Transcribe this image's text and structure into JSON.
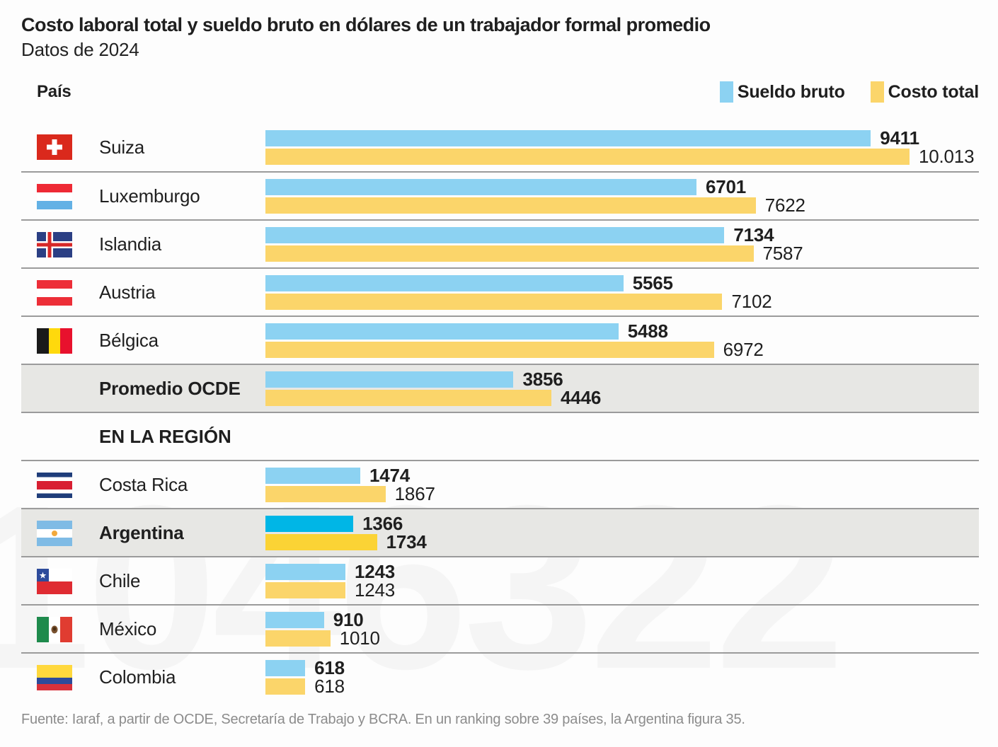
{
  "title": "Costo laboral total y sueldo bruto en dólares de un trabajador formal promedio",
  "subtitle": "Datos de 2024",
  "table": {
    "country_column_header": "País"
  },
  "legend": [
    {
      "label": "Sueldo bruto",
      "color": "#8CD2F2"
    },
    {
      "label": "Costo total",
      "color": "#FBD56A"
    }
  ],
  "colors": {
    "bar_blue": "#8CD2F2",
    "bar_yellow": "#FBD56A",
    "bar_blue_highlight": "#00B6E6",
    "bar_yellow_highlight": "#FBD335",
    "row_highlight_bg": "#E7E7E4",
    "divider": "#9B9B9B",
    "text": "#1F1F1F",
    "source_text": "#8C8C8C"
  },
  "watermark": {
    "text": "1046322"
  },
  "source": "Fuente: Iaraf, a partir de OCDE, Secretaría de Trabajo y BCRA. En un ranking sobre 39 países, la Argentina figura 35.",
  "chart_data": {
    "type": "bar",
    "orientation": "horizontal",
    "title": "Costo laboral total y sueldo bruto en dólares de un trabajador formal promedio",
    "subtitle": "Datos de 2024",
    "series_names": [
      "Sueldo bruto",
      "Costo total"
    ],
    "unit": "USD",
    "scale_max": 10013,
    "section_header": "EN LA REGIÓN",
    "rows": [
      {
        "name": "Suiza",
        "sueldo": 9411,
        "costo": 10013,
        "sueldo_label": "9411",
        "costo_label": "10.013",
        "highlight": false
      },
      {
        "name": "Luxemburgo",
        "sueldo": 6701,
        "costo": 7622,
        "sueldo_label": "6701",
        "costo_label": "7622",
        "highlight": false
      },
      {
        "name": "Islandia",
        "sueldo": 7134,
        "costo": 7587,
        "sueldo_label": "7134",
        "costo_label": "7587",
        "highlight": false
      },
      {
        "name": "Austria",
        "sueldo": 5565,
        "costo": 7102,
        "sueldo_label": "5565",
        "costo_label": "7102",
        "highlight": false
      },
      {
        "name": "Bélgica",
        "sueldo": 5488,
        "costo": 6972,
        "sueldo_label": "5488",
        "costo_label": "6972",
        "highlight": false
      },
      {
        "name": "Promedio OCDE",
        "sueldo": 3856,
        "costo": 4446,
        "sueldo_label": "3856",
        "costo_label": "4446",
        "highlight": true
      },
      {
        "name": "EN LA REGIÓN",
        "type": "section"
      },
      {
        "name": "Costa Rica",
        "sueldo": 1474,
        "costo": 1867,
        "sueldo_label": "1474",
        "costo_label": "1867",
        "highlight": false
      },
      {
        "name": "Argentina",
        "sueldo": 1366,
        "costo": 1734,
        "sueldo_label": "1366",
        "costo_label": "1734",
        "highlight": true
      },
      {
        "name": "Chile",
        "sueldo": 1243,
        "costo": 1243,
        "sueldo_label": "1243",
        "costo_label": "1243",
        "highlight": false
      },
      {
        "name": "México",
        "sueldo": 910,
        "costo": 1010,
        "sueldo_label": "910",
        "costo_label": "1010",
        "highlight": false
      },
      {
        "name": "Colombia",
        "sueldo": 618,
        "costo": 618,
        "sueldo_label": "618",
        "costo_label": "618",
        "highlight": false
      }
    ]
  }
}
